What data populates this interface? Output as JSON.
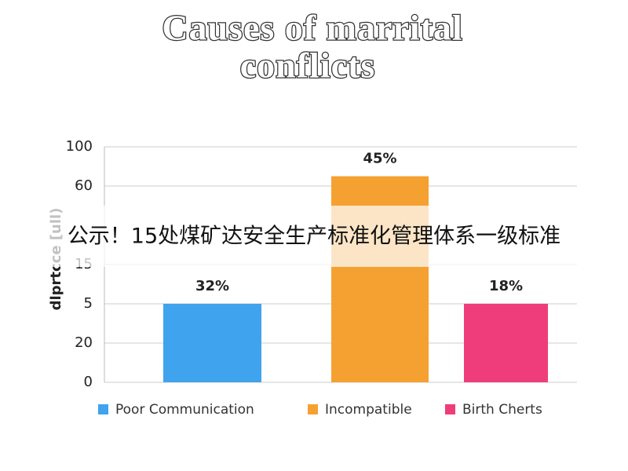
{
  "chart_data": {
    "type": "bar",
    "title_lines": [
      "Causes of marrital",
      "conflicts"
    ],
    "y_label": "dlprtcce [ull)",
    "categories": [
      "Poor Communication",
      "Incompatible",
      "Birth Cherts"
    ],
    "colors": [
      "#3fa3ee",
      "#f5a132",
      "#ee3d7a"
    ],
    "values": [
      40,
      105,
      40
    ],
    "annotations": [
      "32%",
      "45%",
      "18%"
    ],
    "ylim": [
      0,
      120
    ],
    "yticks": [
      0,
      20,
      {
        "value": 40,
        "label": "5"
      },
      {
        "value": 60,
        "label": "15"
      },
      {
        "value": 100,
        "label": "60"
      },
      {
        "value": 120,
        "label": "100"
      }
    ],
    "grid": true
  },
  "overlay": {
    "text": "公示！15处煤矿达安全生产标准化管理体系一级标准"
  }
}
